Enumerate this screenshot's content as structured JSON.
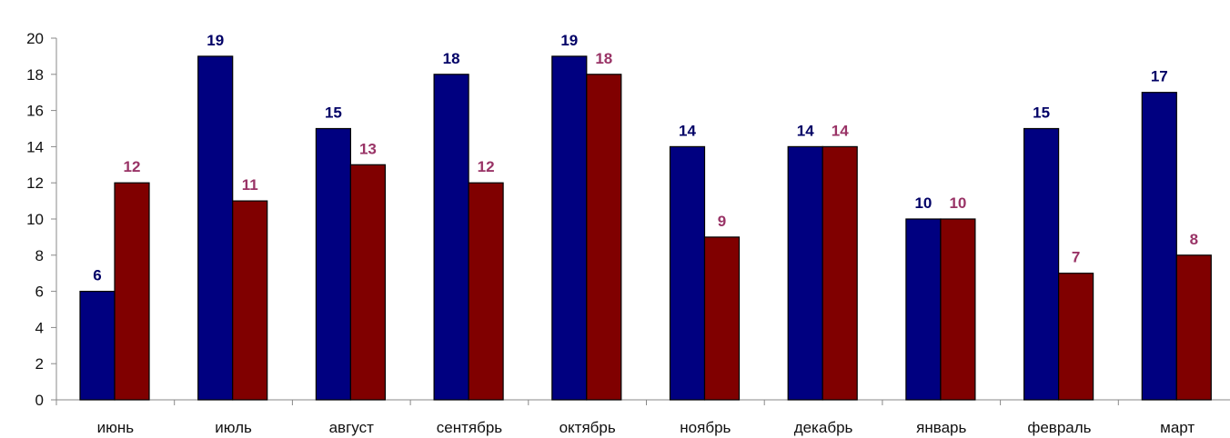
{
  "chart_data": {
    "type": "bar",
    "title": "",
    "xlabel": "",
    "ylabel": "",
    "ylim": [
      0,
      20
    ],
    "yticks": [
      0,
      2,
      4,
      6,
      8,
      10,
      12,
      14,
      16,
      18,
      20
    ],
    "grid": false,
    "legend": "none",
    "categories": [
      "июнь",
      "июль",
      "август",
      "сентябрь",
      "октябрь",
      "ноябрь",
      "декабрь",
      "январь",
      "февраль",
      "март"
    ],
    "series": [
      {
        "color": "#000080",
        "values": [
          6,
          19,
          15,
          18,
          19,
          14,
          14,
          10,
          15,
          17
        ]
      },
      {
        "color": "#800000",
        "values": [
          12,
          11,
          13,
          12,
          18,
          9,
          14,
          10,
          7,
          8
        ]
      }
    ],
    "data_label_colors": [
      "#000066",
      "#993366"
    ]
  }
}
